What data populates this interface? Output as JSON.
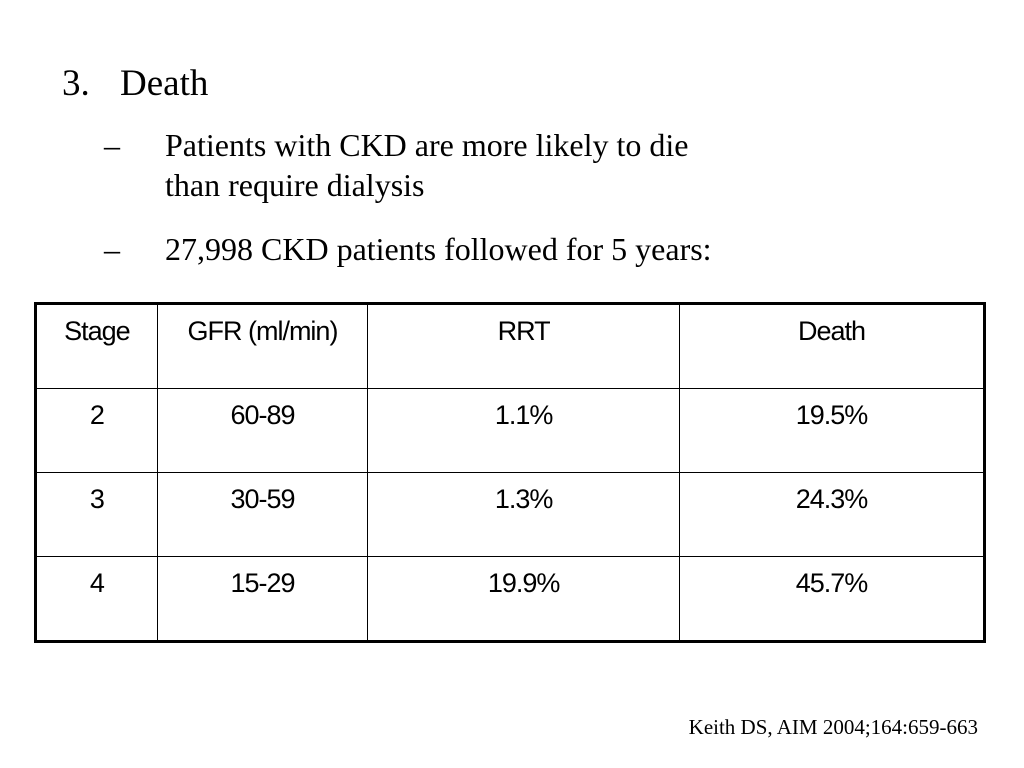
{
  "heading": {
    "number": "3.",
    "title": "Death"
  },
  "bullets": [
    {
      "dash": "–",
      "lines": [
        "Patients with CKD are more likely to die",
        "than require dialysis"
      ]
    },
    {
      "dash": "–",
      "lines": [
        "27,998 CKD patients followed for 5 years:"
      ]
    }
  ],
  "table": {
    "headers": [
      "Stage",
      "GFR (ml/min)",
      "RRT",
      "Death"
    ],
    "rows": [
      [
        "2",
        "60-89",
        "1.1%",
        "19.5%"
      ],
      [
        "3",
        "30-59",
        "1.3%",
        "24.3%"
      ],
      [
        "4",
        "15-29",
        "19.9%",
        "45.7%"
      ]
    ]
  },
  "citation": "Keith DS, AIM 2004;164:659-663"
}
